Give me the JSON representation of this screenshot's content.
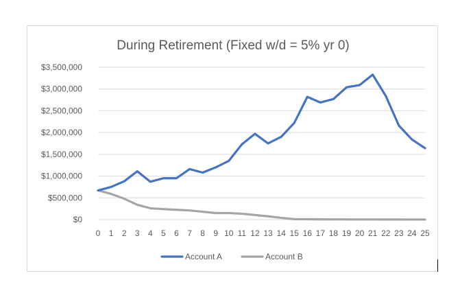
{
  "chart_data": {
    "type": "line",
    "title": "During Retirement (Fixed w/d = 5% yr 0)",
    "xlabel": "",
    "ylabel": "",
    "x": [
      0,
      1,
      2,
      3,
      4,
      5,
      6,
      7,
      8,
      9,
      10,
      11,
      12,
      13,
      14,
      15,
      16,
      17,
      18,
      19,
      20,
      21,
      22,
      23,
      24,
      25
    ],
    "y_ticks": [
      "$0",
      "$500,000",
      "$1,000,000",
      "$1,500,000",
      "$2,000,000",
      "$2,500,000",
      "$3,000,000",
      "$3,500,000"
    ],
    "ylim": [
      0,
      3500000
    ],
    "y_step": 500000,
    "grid": true,
    "legend_position": "bottom",
    "series": [
      {
        "name": "Account A",
        "color": "#4472c4",
        "values": [
          670000,
          750000,
          880000,
          1110000,
          870000,
          950000,
          950000,
          1160000,
          1080000,
          1200000,
          1350000,
          1730000,
          1970000,
          1750000,
          1900000,
          2220000,
          2820000,
          2690000,
          2770000,
          3040000,
          3090000,
          3330000,
          2840000,
          2160000,
          1840000,
          1640000
        ]
      },
      {
        "name": "Account B",
        "color": "#a5a5a5",
        "values": [
          670000,
          590000,
          480000,
          340000,
          260000,
          240000,
          225000,
          210000,
          180000,
          150000,
          150000,
          135000,
          105000,
          75000,
          40000,
          10000,
          8000,
          6000,
          5000,
          4000,
          3000,
          3000,
          2000,
          2000,
          1000,
          1000
        ]
      }
    ]
  }
}
